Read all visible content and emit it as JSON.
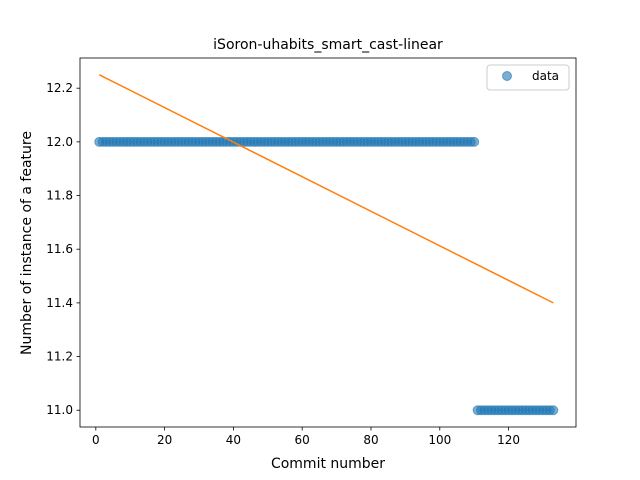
{
  "chart_data": {
    "type": "scatter",
    "title": "iSoron-uhabits_smart_cast-linear",
    "xlabel": "Commit number",
    "ylabel": "Number of instance of a feature",
    "xlim": [
      -4.6,
      139.6
    ],
    "ylim": [
      10.9375,
      12.3125
    ],
    "xticks": [
      0,
      20,
      40,
      60,
      80,
      100,
      120
    ],
    "yticks": [
      11.0,
      11.2,
      11.4,
      11.6,
      11.8,
      12.0,
      12.2
    ],
    "ytick_labels": [
      "11.0",
      "11.2",
      "11.4",
      "11.6",
      "11.8",
      "12.0",
      "12.2"
    ],
    "grid": false,
    "legend_position": "top-right",
    "series": [
      {
        "name": "data",
        "kind": "scatter",
        "color": "#1f77b4",
        "segments": [
          {
            "x_start": 1,
            "x_end": 110,
            "y": 12
          },
          {
            "x_start": 111,
            "x_end": 133,
            "y": 11
          }
        ]
      },
      {
        "kind": "line",
        "color": "#ff7f0e",
        "x": [
          1,
          133
        ],
        "y": [
          12.25,
          11.4
        ]
      }
    ]
  }
}
